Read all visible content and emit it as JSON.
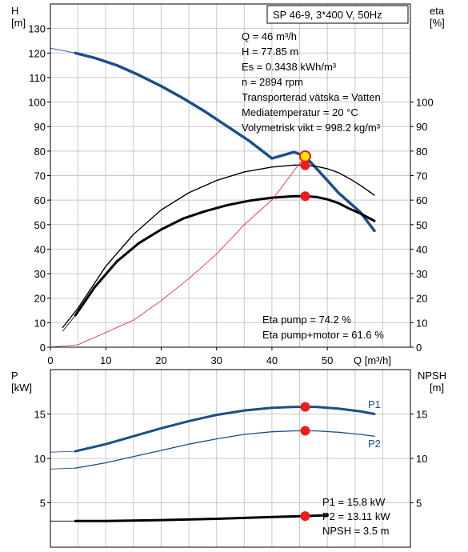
{
  "chart_data": [
    {
      "type": "line",
      "title": "SP 46-9, 3*400 V, 50Hz",
      "xlabel": "Q [m³/h]",
      "ylabel_left": [
        "H",
        "[m]"
      ],
      "ylabel_right": [
        "eta",
        "[%]"
      ],
      "xlim": [
        0,
        65
      ],
      "ylim_left": [
        0,
        140
      ],
      "ylim_right": [
        0,
        140
      ],
      "x_ticks": [
        0,
        10,
        20,
        30,
        40,
        50
      ],
      "y_ticks_left": [
        0,
        10,
        20,
        30,
        40,
        50,
        60,
        70,
        80,
        90,
        100,
        110,
        120,
        130
      ],
      "y_ticks_right": [
        0,
        10,
        20,
        30,
        40,
        50,
        60,
        70,
        80,
        90,
        100
      ],
      "grid": true,
      "series": [
        {
          "color": "#1a4f8a",
          "width": 3.5,
          "x": [
            4.5,
            8,
            12,
            16,
            20,
            24,
            28,
            32,
            36,
            40,
            44,
            46,
            48,
            50,
            52,
            54,
            56,
            58.5
          ],
          "y": [
            120,
            118,
            115,
            111,
            106.5,
            101.5,
            96,
            90,
            84,
            77,
            79.6,
            77.85,
            73,
            68,
            63,
            59,
            55,
            47.5
          ]
        },
        {
          "color": "#000000",
          "width": 1.4,
          "x": [
            2.2,
            5,
            10,
            15,
            20,
            25,
            30,
            35,
            40,
            44,
            46,
            48,
            50,
            52,
            54,
            56,
            58.5
          ],
          "y": [
            8,
            16,
            33,
            46,
            56,
            63,
            68,
            71.5,
            73.5,
            74.3,
            74.2,
            73.8,
            72.8,
            71.2,
            68.8,
            66,
            62
          ]
        },
        {
          "color": "#000000",
          "width": 3,
          "x": [
            4.5,
            8,
            12,
            16,
            20,
            24,
            28,
            32,
            36,
            40,
            44,
            46,
            48,
            50,
            52,
            54,
            56,
            58.5
          ],
          "y": [
            13,
            24.5,
            35,
            42.5,
            48,
            52.5,
            55.5,
            58,
            59.8,
            61,
            61.6,
            61.6,
            61.3,
            60.3,
            58.8,
            56.5,
            54.5,
            51.5
          ]
        },
        {
          "color": "#e02020",
          "width": 0.8,
          "x": [
            0,
            5,
            10,
            15,
            20,
            25,
            30,
            35,
            40,
            44,
            46
          ],
          "y": [
            0,
            1,
            6,
            11,
            19,
            28,
            38,
            50,
            60,
            72,
            77.85
          ]
        }
      ],
      "thin_extensions": [
        {
          "color": "#1a4f8a",
          "x": [
            0,
            4.5
          ],
          "y": [
            122,
            120
          ]
        },
        {
          "color": "#000000",
          "x": [
            2.2,
            4.5
          ],
          "y": [
            6.5,
            13
          ]
        }
      ],
      "points": [
        {
          "x": 46,
          "y": 77.85,
          "kind": "duty"
        },
        {
          "x": 46,
          "y": 74.2,
          "kind": "marker"
        },
        {
          "x": 46,
          "y": 61.6,
          "kind": "marker"
        }
      ],
      "annotations": [
        "Q = 46 m³/h",
        "H = 77.85 m",
        "Es = 0.3438 kWh/m³",
        "n = 2894 rpm",
        "Transporterad vätska = Vatten",
        "Mediatemperatur = 20 °C",
        "Volymetrisk vikt = 998.2 kg/m³"
      ],
      "eta_annotations": [
        "Eta pump = 74.2 %",
        "Eta pump+motor = 61.6 %"
      ]
    },
    {
      "type": "line",
      "ylabel_left": [
        "P",
        "[kW]"
      ],
      "ylabel_right": [
        "NPSH",
        "[m]"
      ],
      "xlim": [
        0,
        65
      ],
      "ylim_left": [
        0,
        20
      ],
      "ylim_right": [
        0,
        20
      ],
      "y_ticks_left": [
        5,
        10,
        15
      ],
      "y_ticks_right": [
        5,
        10,
        15
      ],
      "grid": true,
      "series": [
        {
          "name": "P1",
          "color": "#1a4f8a",
          "width": 3,
          "x": [
            4.5,
            10,
            15,
            20,
            25,
            30,
            35,
            40,
            44,
            46,
            48,
            52,
            56,
            58.5
          ],
          "y": [
            10.8,
            11.6,
            12.5,
            13.4,
            14.2,
            14.9,
            15.4,
            15.7,
            15.8,
            15.8,
            15.8,
            15.6,
            15.3,
            15.0
          ]
        },
        {
          "name": "P2",
          "color": "#1a4f8a",
          "width": 1.3,
          "x": [
            4.5,
            10,
            15,
            20,
            25,
            30,
            35,
            40,
            44,
            46,
            48,
            52,
            56,
            58.5
          ],
          "y": [
            8.9,
            9.5,
            10.2,
            10.9,
            11.6,
            12.2,
            12.7,
            13.0,
            13.1,
            13.11,
            13.1,
            12.95,
            12.7,
            12.5
          ]
        },
        {
          "name": "",
          "color": "#000000",
          "width": 3,
          "x": [
            4.5,
            10,
            20,
            30,
            40,
            46,
            50
          ],
          "y": [
            2.95,
            2.95,
            3.05,
            3.2,
            3.4,
            3.5,
            3.6
          ]
        }
      ],
      "thin_extensions": [
        {
          "color": "#1a4f8a",
          "x": [
            0,
            4.5
          ],
          "y": [
            10.7,
            10.8
          ]
        },
        {
          "color": "#1a4f8a",
          "x": [
            0,
            4.5
          ],
          "y": [
            8.8,
            8.9
          ]
        },
        {
          "color": "#000000",
          "x": [
            0,
            4.5
          ],
          "y": [
            2.95,
            2.95
          ]
        }
      ],
      "points": [
        {
          "x": 46,
          "y": 15.8
        },
        {
          "x": 46,
          "y": 13.11
        },
        {
          "x": 46,
          "y": 3.5
        }
      ],
      "annotations": [
        "P1 = 15.8 kW",
        "P2 = 13.11 kW",
        "NPSH = 3.5 m"
      ]
    }
  ]
}
